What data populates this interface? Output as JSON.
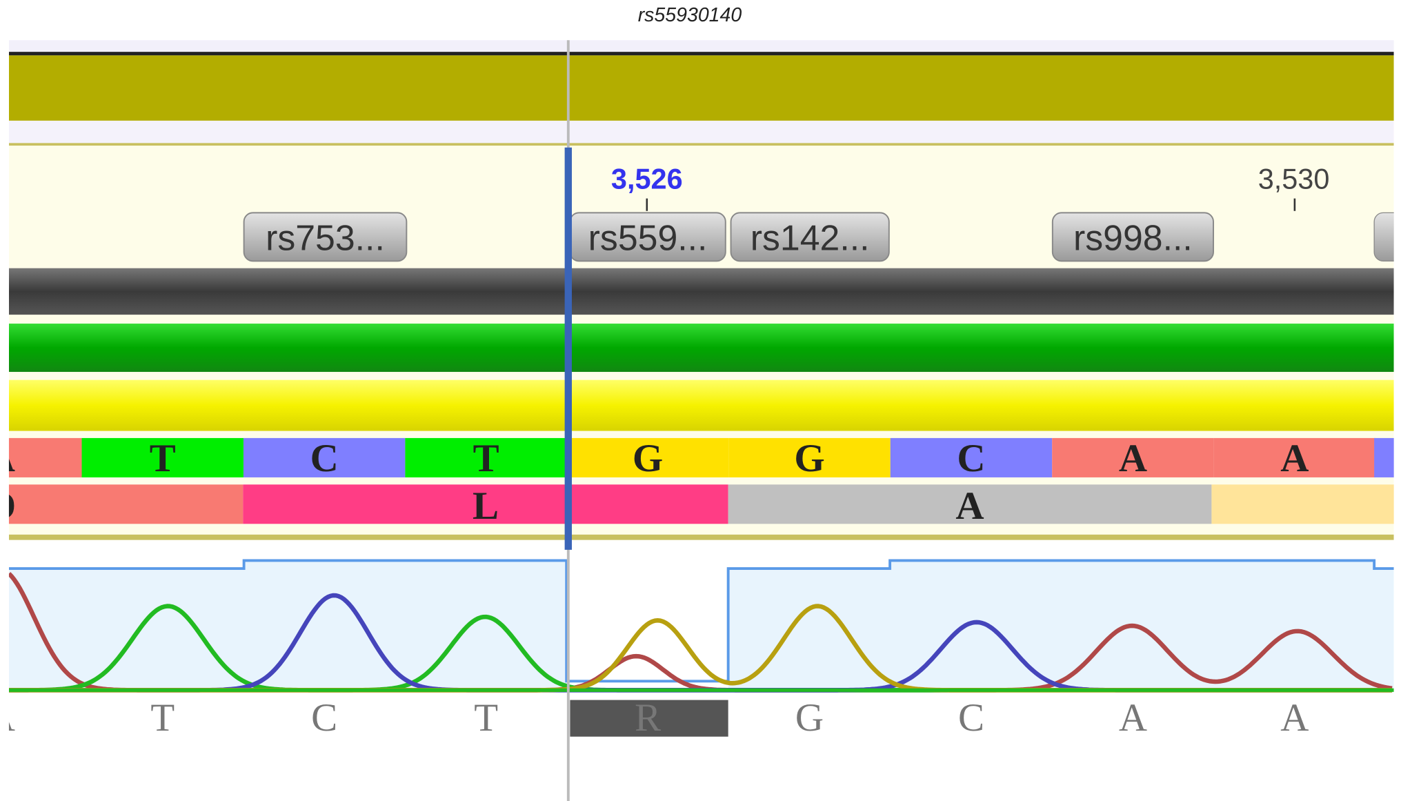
{
  "title": "rs55930140",
  "ruler": [
    "3,526",
    "3,530"
  ],
  "variants": [
    "rs753...",
    "rs559...",
    "rs142...",
    "rs998..."
  ],
  "reference": [
    "A",
    "T",
    "C",
    "T",
    "G",
    "G",
    "C",
    "A",
    "A"
  ],
  "translation": [
    "D",
    "L",
    "A"
  ],
  "calls": [
    "A",
    "T",
    "C",
    "T",
    "R",
    "G",
    "C",
    "A",
    "A"
  ]
}
